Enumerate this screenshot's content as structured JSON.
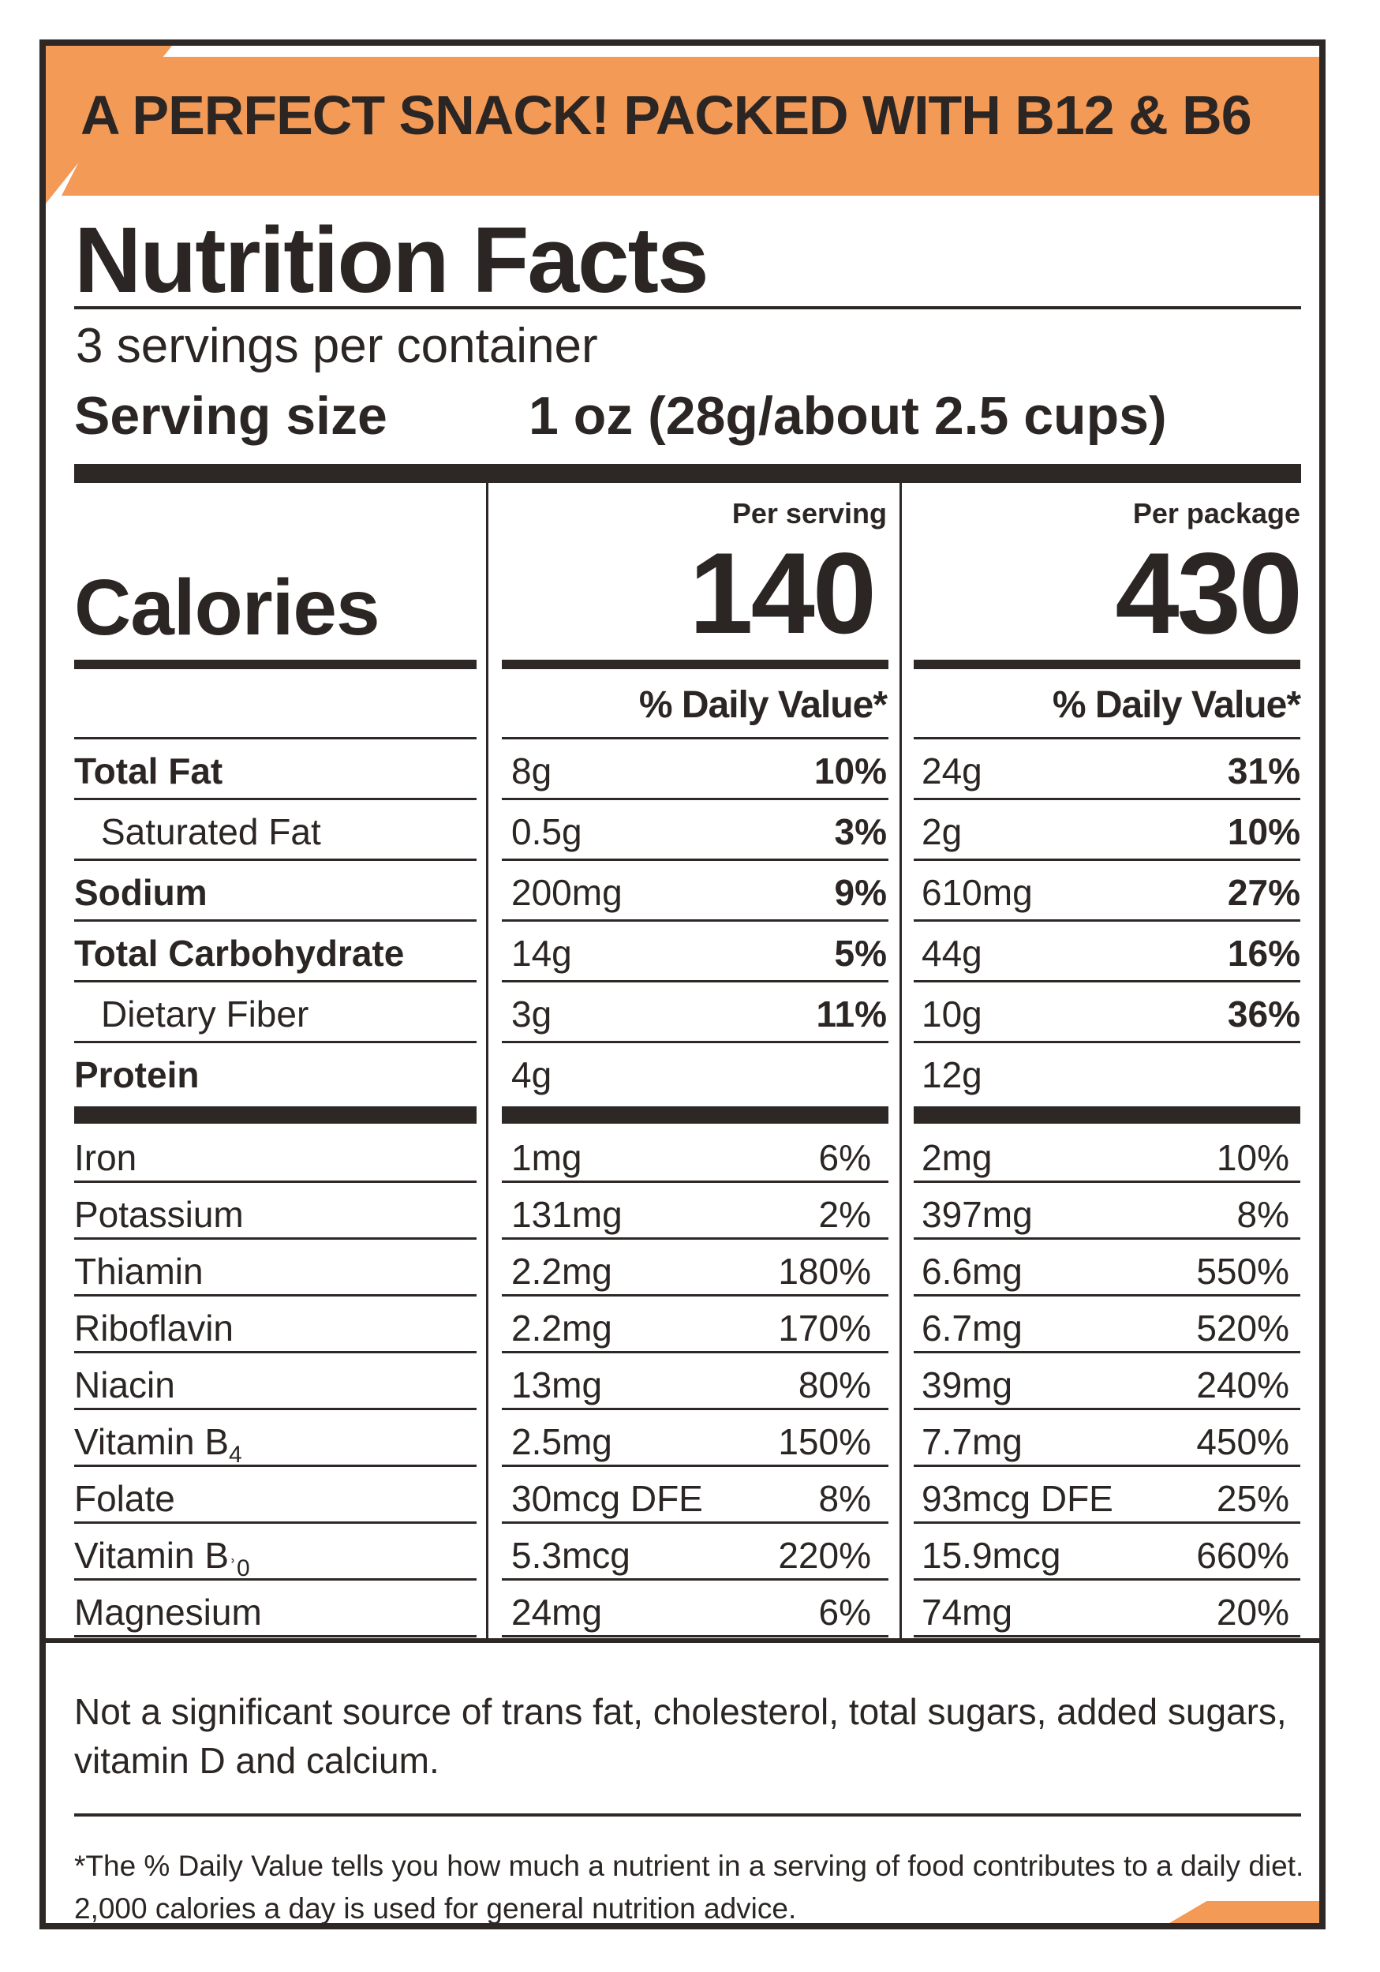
{
  "banner": "A PERFECT SNACK! PACKED WITH B12 & B6",
  "title": "Nutrition Facts",
  "servings_per_container": "3 servings per container",
  "serving_size_label": "Serving size",
  "serving_size_value": "1 oz (28g/about 2.5 cups)",
  "calories_label": "Calories",
  "per_serving_label": "Per serving",
  "per_package_label": "Per package",
  "calories_per_serving": "140",
  "calories_per_package": "430",
  "daily_value_header": "% Daily Value*",
  "nutrients": [
    {
      "name": "Total Fat",
      "bold": true,
      "indent": false,
      "serving_amount": "8g",
      "serving_dv": "10%",
      "package_amount": "24g",
      "package_dv": "31%"
    },
    {
      "name": "Saturated Fat",
      "bold": false,
      "indent": true,
      "serving_amount": "0.5g",
      "serving_dv": "3%",
      "package_amount": "2g",
      "package_dv": "10%"
    },
    {
      "name": "Sodium",
      "bold": true,
      "indent": false,
      "serving_amount": "200mg",
      "serving_dv": "9%",
      "package_amount": "610mg",
      "package_dv": "27%"
    },
    {
      "name": "Total Carbohydrate",
      "bold": true,
      "indent": false,
      "serving_amount": "14g",
      "serving_dv": "5%",
      "package_amount": "44g",
      "package_dv": "16%"
    },
    {
      "name": "Dietary Fiber",
      "bold": false,
      "indent": true,
      "serving_amount": "3g",
      "serving_dv": "11%",
      "package_amount": "10g",
      "package_dv": "36%"
    },
    {
      "name": "Protein",
      "bold": true,
      "indent": false,
      "serving_amount": "4g",
      "serving_dv": "",
      "package_amount": "12g",
      "package_dv": ""
    }
  ],
  "vitamins": [
    {
      "name": "Iron",
      "serving_amount": "1mg",
      "serving_dv": "6%",
      "package_amount": "2mg",
      "package_dv": "10%"
    },
    {
      "name": "Potassium",
      "serving_amount": "131mg",
      "serving_dv": "2%",
      "package_amount": "397mg",
      "package_dv": "8%"
    },
    {
      "name": "Thiamin",
      "serving_amount": "2.2mg",
      "serving_dv": "180%",
      "package_amount": "6.6mg",
      "package_dv": "550%"
    },
    {
      "name": "Riboflavin",
      "serving_amount": "2.2mg",
      "serving_dv": "170%",
      "package_amount": "6.7mg",
      "package_dv": "520%"
    },
    {
      "name": "Niacin",
      "serving_amount": "13mg",
      "serving_dv": "80%",
      "package_amount": "39mg",
      "package_dv": "240%"
    },
    {
      "name": "Vitamin B",
      "sub": "4",
      "serving_amount": "2.5mg",
      "serving_dv": "150%",
      "package_amount": "7.7mg",
      "package_dv": "450%"
    },
    {
      "name": "Folate",
      "serving_amount": "30mcg DFE",
      "serving_dv": "8%",
      "package_amount": "93mcg DFE",
      "package_dv": "25%"
    },
    {
      "name": "Vitamin B",
      "sub": "ʾ0",
      "serving_amount": "5.3mcg",
      "serving_dv": "220%",
      "package_amount": "15.9mcg",
      "package_dv": "660%"
    },
    {
      "name": "Magnesium",
      "serving_amount": "24mg",
      "serving_dv": "6%",
      "package_amount": "74mg",
      "package_dv": "20%"
    }
  ],
  "footnote_1": "Not a significant source of trans fat, cholesterol, total sugars, added sugars, vitamin D and calcium.",
  "footnote_2": "*The % Daily Value tells you how much a nutrient in a serving of food contributes to a daily diet. 2,000 calories a day is used for general nutrition advice.",
  "colors": {
    "accent": "#f39a57",
    "ink": "#2b2624",
    "background": "#ffffff"
  }
}
